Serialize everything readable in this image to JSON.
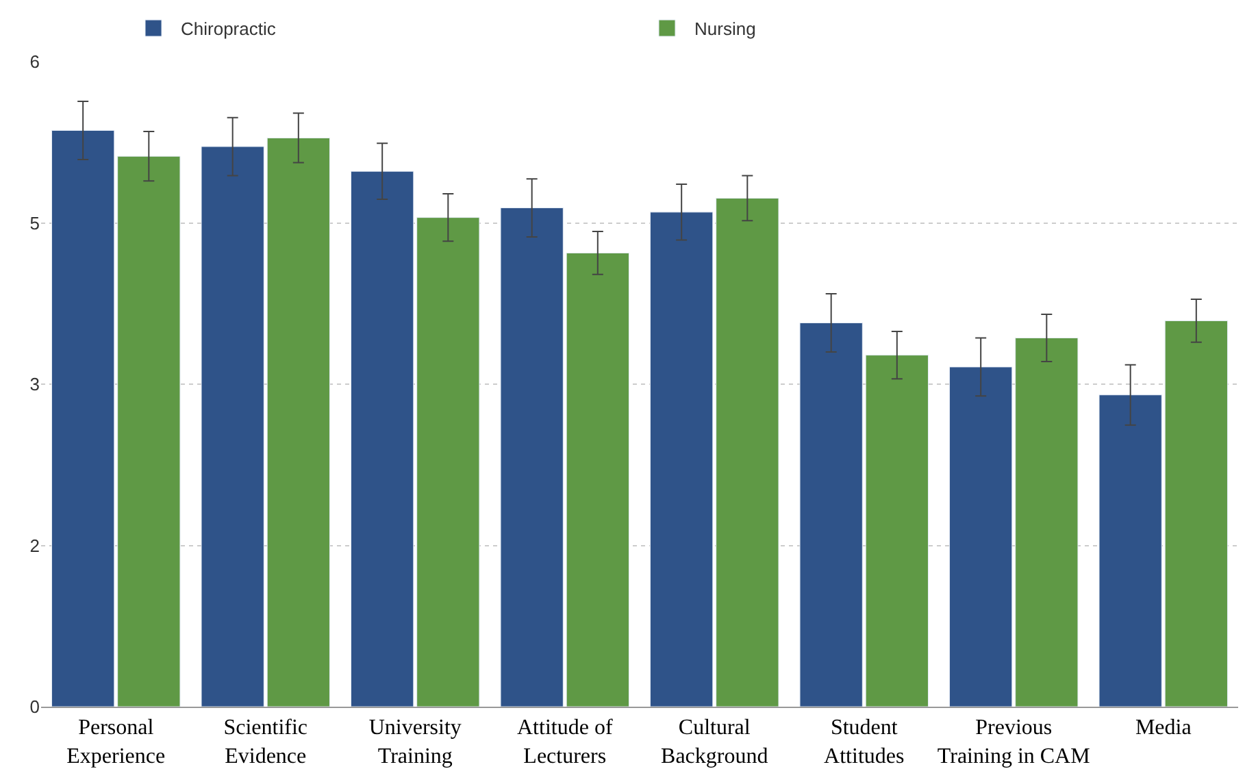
{
  "chart_data": {
    "type": "bar",
    "categories": [
      "Personal Experience",
      "Scientific Evidence",
      "University Training",
      "Attitude of Lecturers",
      "Cultural Background",
      "Student Attitudes",
      "Previous Training in CAM",
      "Media"
    ],
    "series": [
      {
        "name": "Chiropractic",
        "color": "#2f5389",
        "values": [
          5.36,
          5.21,
          4.98,
          4.64,
          4.6,
          3.57,
          3.16,
          2.9
        ],
        "errors": [
          0.27,
          0.27,
          0.26,
          0.27,
          0.26,
          0.27,
          0.27,
          0.28
        ]
      },
      {
        "name": "Nursing",
        "color": "#5f9945",
        "values": [
          5.12,
          5.29,
          4.55,
          4.22,
          4.73,
          3.27,
          3.43,
          3.59
        ],
        "errors": [
          0.23,
          0.23,
          0.22,
          0.2,
          0.21,
          0.22,
          0.22,
          0.2
        ]
      }
    ],
    "ylim": [
      0,
      6
    ],
    "yticks": [
      0,
      {
        "value": 1.5,
        "label": "2"
      },
      3,
      {
        "value": 4.5,
        "label": "5"
      },
      6
    ],
    "grid": "y",
    "legend": "top"
  }
}
